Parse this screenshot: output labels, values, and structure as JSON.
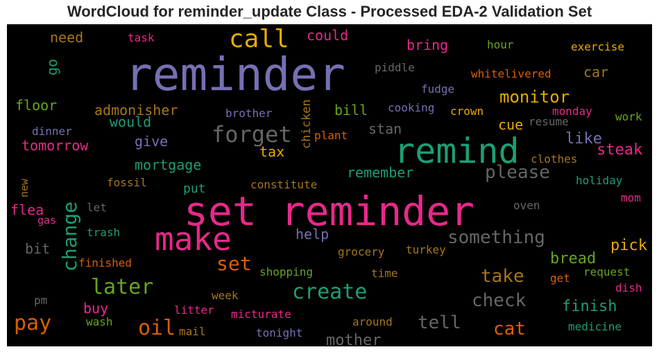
{
  "chart_data": {
    "type": "wordcloud",
    "title": "WordCloud for reminder_update Class - Processed EDA-2 Validation Set",
    "background": "#000000",
    "palette": {
      "purple": "#7570b3",
      "teal": "#1b9e77",
      "pink": "#e7298a",
      "orange": "#d95f02",
      "gold": "#e6ab02",
      "green": "#66a61e",
      "brown": "#a6761d",
      "gray": "#666666"
    },
    "words": [
      {
        "text": "reminder",
        "weight": 100,
        "color": "#7570b3"
      },
      {
        "text": "set reminder",
        "weight": 92,
        "color": "#e7298a"
      },
      {
        "text": "remind",
        "weight": 78,
        "color": "#1b9e77"
      },
      {
        "text": "make",
        "weight": 62,
        "color": "#e7298a"
      },
      {
        "text": "call",
        "weight": 52,
        "color": "#e6ab02"
      },
      {
        "text": "forget",
        "weight": 46,
        "color": "#666666"
      },
      {
        "text": "change",
        "weight": 44,
        "color": "#1b9e77"
      },
      {
        "text": "later",
        "weight": 42,
        "color": "#66a61e"
      },
      {
        "text": "create",
        "weight": 40,
        "color": "#1b9e77"
      },
      {
        "text": "pay",
        "weight": 38,
        "color": "#d95f02"
      },
      {
        "text": "oil",
        "weight": 36,
        "color": "#d95f02"
      },
      {
        "text": "something",
        "weight": 34,
        "color": "#666666"
      },
      {
        "text": "please",
        "weight": 34,
        "color": "#666666"
      },
      {
        "text": "set",
        "weight": 34,
        "color": "#d95f02"
      },
      {
        "text": "cat",
        "weight": 32,
        "color": "#d95f02"
      },
      {
        "text": "tell",
        "weight": 32,
        "color": "#666666"
      },
      {
        "text": "check",
        "weight": 32,
        "color": "#666666"
      },
      {
        "text": "take",
        "weight": 32,
        "color": "#a6761d"
      },
      {
        "text": "monitor",
        "weight": 30,
        "color": "#e6ab02"
      },
      {
        "text": "finish",
        "weight": 26,
        "color": "#1b9e77"
      },
      {
        "text": "bread",
        "weight": 26,
        "color": "#66a61e"
      },
      {
        "text": "pick",
        "weight": 26,
        "color": "#e6ab02"
      },
      {
        "text": "mother",
        "weight": 26,
        "color": "#666666"
      },
      {
        "text": "like",
        "weight": 26,
        "color": "#7570b3"
      },
      {
        "text": "steak",
        "weight": 26,
        "color": "#e7298a"
      },
      {
        "text": "cue",
        "weight": 24,
        "color": "#e6ab02"
      },
      {
        "text": "car",
        "weight": 24,
        "color": "#a6761d"
      },
      {
        "text": "bill",
        "weight": 24,
        "color": "#66a61e"
      },
      {
        "text": "bring",
        "weight": 24,
        "color": "#e7298a"
      },
      {
        "text": "could",
        "weight": 24,
        "color": "#e7298a"
      },
      {
        "text": "need",
        "weight": 24,
        "color": "#a6761d"
      },
      {
        "text": "floor",
        "weight": 24,
        "color": "#66a61e"
      },
      {
        "text": "admonisher",
        "weight": 24,
        "color": "#a6761d"
      },
      {
        "text": "would",
        "weight": 24,
        "color": "#1b9e77"
      },
      {
        "text": "tomorrow",
        "weight": 24,
        "color": "#e7298a"
      },
      {
        "text": "give",
        "weight": 24,
        "color": "#7570b3"
      },
      {
        "text": "mortgage",
        "weight": 24,
        "color": "#1b9e77"
      },
      {
        "text": "stan",
        "weight": 24,
        "color": "#666666"
      },
      {
        "text": "remember",
        "weight": 24,
        "color": "#1b9e77"
      },
      {
        "text": "put",
        "weight": 22,
        "color": "#1b9e77"
      },
      {
        "text": "help",
        "weight": 24,
        "color": "#7570b3"
      },
      {
        "text": "buy",
        "weight": 22,
        "color": "#e7298a"
      },
      {
        "text": "flea",
        "weight": 22,
        "color": "#e7298a"
      },
      {
        "text": "bit",
        "weight": 22,
        "color": "#666666"
      },
      {
        "text": "go",
        "weight": 22,
        "color": "#1b9e77"
      },
      {
        "text": "tax",
        "weight": 22,
        "color": "#e6ab02"
      },
      {
        "text": "chicken",
        "weight": 20,
        "color": "#a6761d"
      },
      {
        "text": "cooking",
        "weight": 18,
        "color": "#7570b3"
      },
      {
        "text": "crown",
        "weight": 18,
        "color": "#e6ab02"
      },
      {
        "text": "monday",
        "weight": 18,
        "color": "#e7298a"
      },
      {
        "text": "resume",
        "weight": 18,
        "color": "#666666"
      },
      {
        "text": "work",
        "weight": 18,
        "color": "#66a61e"
      },
      {
        "text": "fudge",
        "weight": 18,
        "color": "#7570b3"
      },
      {
        "text": "whitelivered",
        "weight": 18,
        "color": "#d95f02"
      },
      {
        "text": "piddle",
        "weight": 18,
        "color": "#666666"
      },
      {
        "text": "hour",
        "weight": 18,
        "color": "#66a61e"
      },
      {
        "text": "exercise",
        "weight": 18,
        "color": "#e6ab02"
      },
      {
        "text": "task",
        "weight": 18,
        "color": "#e7298a"
      },
      {
        "text": "brother",
        "weight": 18,
        "color": "#7570b3"
      },
      {
        "text": "dinner",
        "weight": 18,
        "color": "#7570b3"
      },
      {
        "text": "plant",
        "weight": 18,
        "color": "#d95f02"
      },
      {
        "text": "clothes",
        "weight": 18,
        "color": "#a6761d"
      },
      {
        "text": "holiday",
        "weight": 18,
        "color": "#1b9e77"
      },
      {
        "text": "mom",
        "weight": 18,
        "color": "#e7298a"
      },
      {
        "text": "oven",
        "weight": 18,
        "color": "#666666"
      },
      {
        "text": "fossil",
        "weight": 18,
        "color": "#a6761d"
      },
      {
        "text": "constitute",
        "weight": 18,
        "color": "#a6761d"
      },
      {
        "text": "new",
        "weight": 16,
        "color": "#a6761d"
      },
      {
        "text": "let",
        "weight": 16,
        "color": "#666666"
      },
      {
        "text": "gas",
        "weight": 16,
        "color": "#e7298a"
      },
      {
        "text": "trash",
        "weight": 18,
        "color": "#1b9e77"
      },
      {
        "text": "finished",
        "weight": 18,
        "color": "#d95f02"
      },
      {
        "text": "grocery",
        "weight": 18,
        "color": "#a6761d"
      },
      {
        "text": "turkey",
        "weight": 18,
        "color": "#a6761d"
      },
      {
        "text": "shopping",
        "weight": 18,
        "color": "#66a61e"
      },
      {
        "text": "time",
        "weight": 18,
        "color": "#a6761d"
      },
      {
        "text": "request",
        "weight": 18,
        "color": "#66a61e"
      },
      {
        "text": "get",
        "weight": 18,
        "color": "#d95f02"
      },
      {
        "text": "dish",
        "weight": 18,
        "color": "#e7298a"
      },
      {
        "text": "pm",
        "weight": 16,
        "color": "#666666"
      },
      {
        "text": "week",
        "weight": 18,
        "color": "#a6761d"
      },
      {
        "text": "litter",
        "weight": 18,
        "color": "#e7298a"
      },
      {
        "text": "micturate",
        "weight": 18,
        "color": "#e7298a"
      },
      {
        "text": "wash",
        "weight": 18,
        "color": "#66a61e"
      },
      {
        "text": "mail",
        "weight": 18,
        "color": "#a6761d"
      },
      {
        "text": "tonight",
        "weight": 18,
        "color": "#7570b3"
      },
      {
        "text": "around",
        "weight": 18,
        "color": "#a6761d"
      },
      {
        "text": "medicine",
        "weight": 18,
        "color": "#1b9e77"
      }
    ]
  }
}
